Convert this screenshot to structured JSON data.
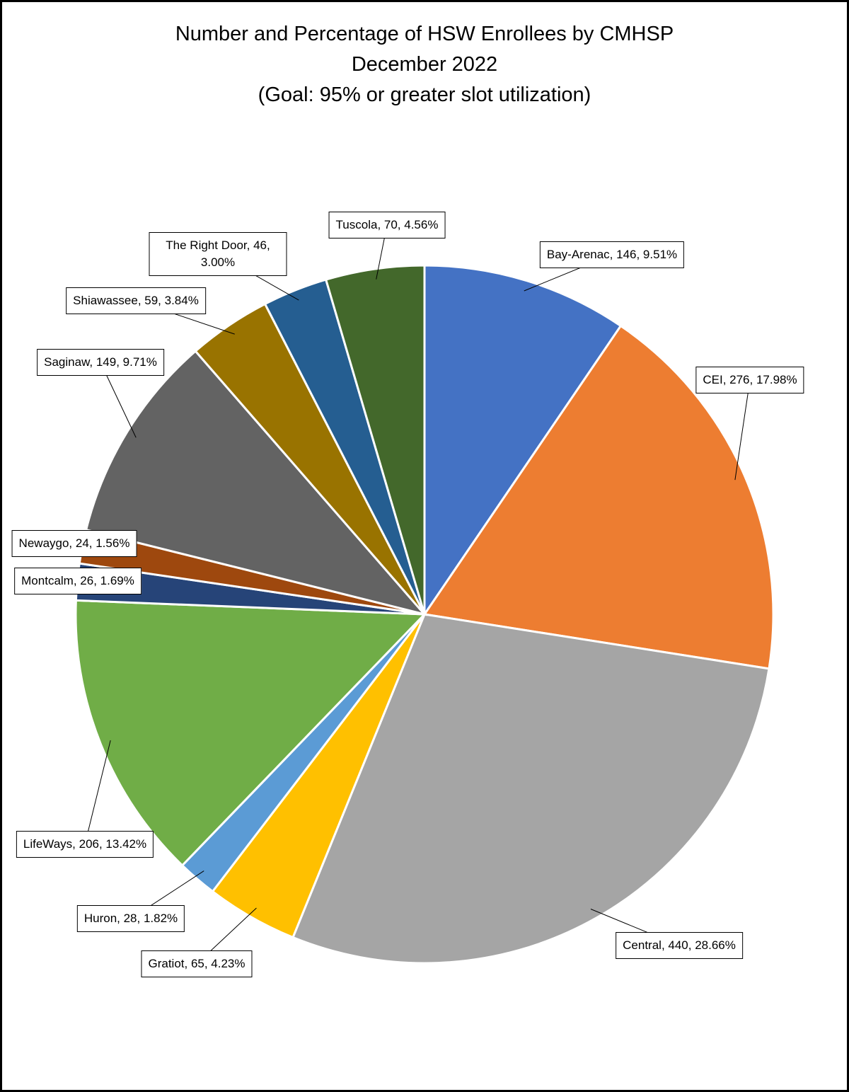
{
  "chart_data": {
    "type": "pie",
    "title": [
      "Number and Percentage of HSW Enrollees by CMHSP",
      "December 2022",
      "(Goal: 95% or greater slot utilization)"
    ],
    "values": [
      146,
      276,
      440,
      65,
      28,
      206,
      26,
      24,
      149,
      59,
      46,
      70
    ],
    "value_labels": [
      "Bay-Arenac, 146, 9.51%",
      "CEI, 276, 17.98%",
      "Central, 440, 28.66%",
      "Gratiot, 65, 4.23%",
      "Huron, 28, 1.82%",
      "LifeWays, 206, 13.42%",
      "Montcalm, 26, 1.69%",
      "Newaygo, 24, 1.56%",
      "Saginaw, 149, 9.71%",
      "Shiawassee, 59, 3.84%",
      "The Right Door, 46, 3.00%",
      "Tuscola, 70, 4.56%"
    ],
    "colors": [
      "#4472c4",
      "#ed7d31",
      "#a5a5a5",
      "#ffc000",
      "#5b9bd5",
      "#70ad47",
      "#264478",
      "#9e480e",
      "#636363",
      "#997300",
      "#255e91",
      "#43682b"
    ]
  }
}
